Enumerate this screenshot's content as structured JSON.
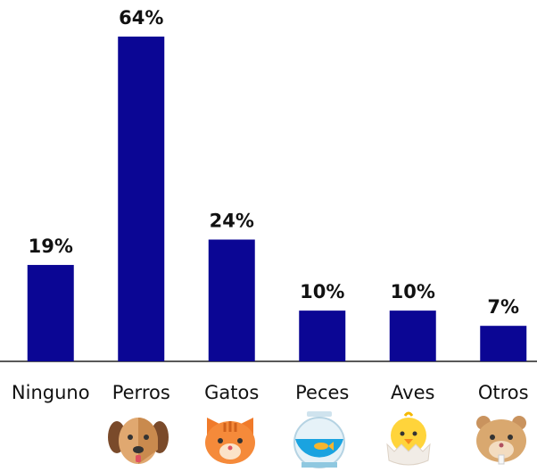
{
  "chart_data": {
    "type": "bar",
    "categories": [
      "Ninguno",
      "Perros",
      "Gatos",
      "Peces",
      "Aves",
      "Otros"
    ],
    "values": [
      19,
      64,
      24,
      10,
      10,
      7
    ],
    "value_labels": [
      "19%",
      "64%",
      "24%",
      "10%",
      "10%",
      "7%"
    ],
    "color": "#0b0694"
  }
}
